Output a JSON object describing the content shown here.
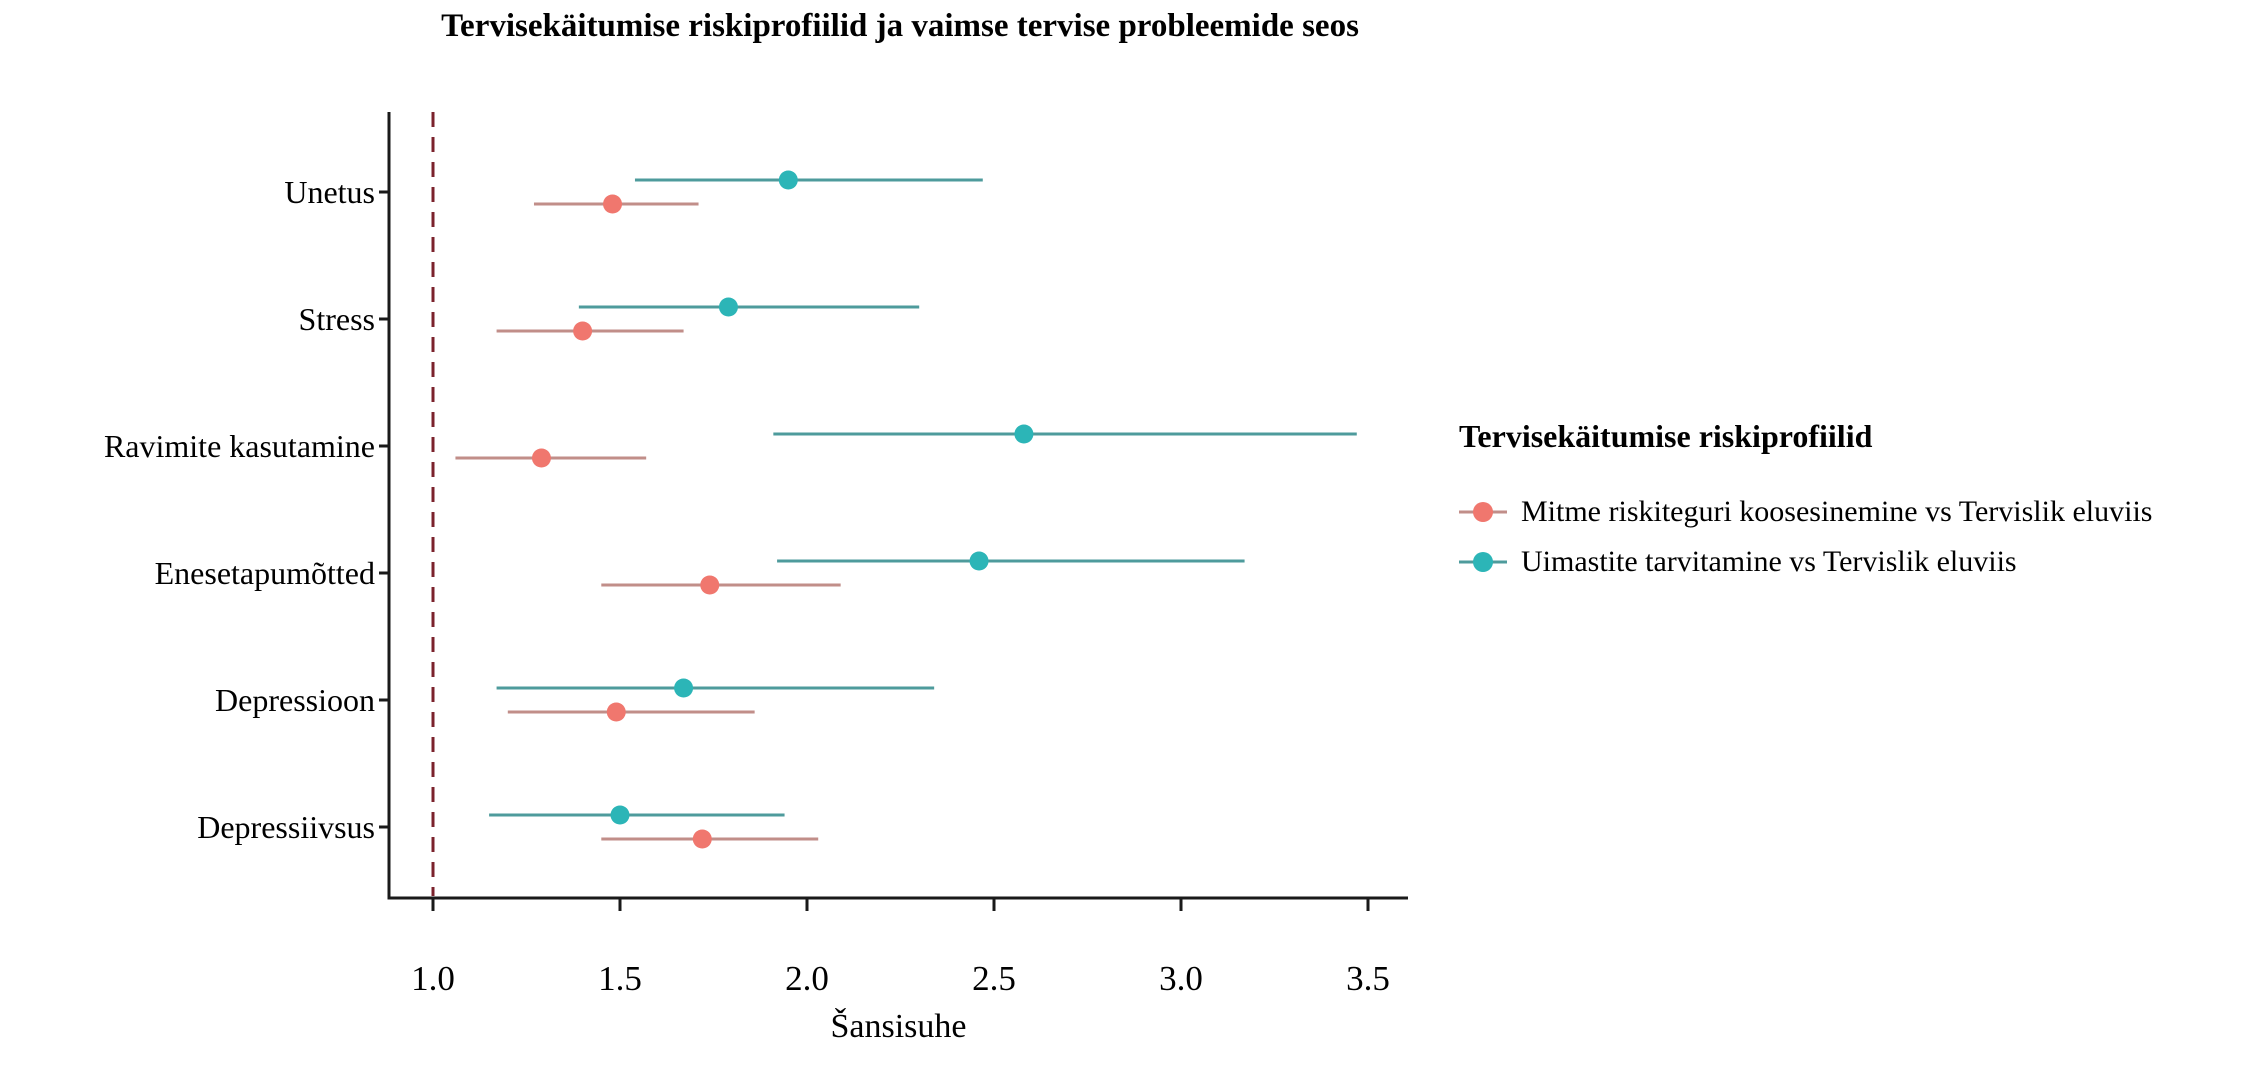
{
  "title": "Tervisekäitumise riskiprofiilid ja vaimse tervise probleemide seos",
  "legend": {
    "title": "Tervisekäitumise riskiprofiilid",
    "entries": [
      {
        "label": "Mitme riskiteguri koosesinemine vs Tervislik eluviis"
      },
      {
        "label": "Uimastite tarvitamine vs Tervislik eluviis"
      }
    ]
  },
  "chart_data": {
    "type": "scatter",
    "subtype": "forest-plot-point-with-95ci",
    "title": "Tervisekäitumise riskiprofiilid ja vaimse tervise probleemide seos",
    "xlabel": "Šansisuhe",
    "ylabel": "",
    "xlim": [
      0.88,
      3.6
    ],
    "x_ticks": [
      1.0,
      1.5,
      2.0,
      2.5,
      3.0,
      3.5
    ],
    "x_tick_labels": [
      "1.0",
      "1.5",
      "2.0",
      "2.5",
      "3.0",
      "3.5"
    ],
    "grid": false,
    "legend_position": "right",
    "reference_line": {
      "x": 1.0,
      "color": "#7B222C",
      "style": "dashed"
    },
    "axis_color": "#1a1a1a",
    "categories": [
      "Unetus",
      "Stress",
      "Ravimite kasutamine",
      "Enesetapumõtted",
      "Depressioon",
      "Depressiivsus"
    ],
    "series": [
      {
        "name": "Mitme riskiteguri koosesinemine vs Tervislik eluviis",
        "color": "#F0776E",
        "line_color": "#C18E89",
        "points": [
          {
            "category": "Unetus",
            "or": 1.48,
            "ci_low": 1.27,
            "ci_high": 1.71
          },
          {
            "category": "Stress",
            "or": 1.4,
            "ci_low": 1.17,
            "ci_high": 1.67
          },
          {
            "category": "Ravimite kasutamine",
            "or": 1.29,
            "ci_low": 1.06,
            "ci_high": 1.57
          },
          {
            "category": "Enesetapumõtted",
            "or": 1.74,
            "ci_low": 1.45,
            "ci_high": 2.09
          },
          {
            "category": "Depressioon",
            "or": 1.49,
            "ci_low": 1.2,
            "ci_high": 1.86
          },
          {
            "category": "Depressiivsus",
            "or": 1.72,
            "ci_low": 1.45,
            "ci_high": 2.03
          }
        ]
      },
      {
        "name": "Uimastite tarvitamine vs Tervislik eluviis",
        "color": "#2CB5B7",
        "line_color": "#4E9B9C",
        "points": [
          {
            "category": "Unetus",
            "or": 1.95,
            "ci_low": 1.54,
            "ci_high": 2.47
          },
          {
            "category": "Stress",
            "or": 1.79,
            "ci_low": 1.39,
            "ci_high": 2.3
          },
          {
            "category": "Ravimite kasutamine",
            "or": 2.58,
            "ci_low": 1.91,
            "ci_high": 3.47
          },
          {
            "category": "Enesetapumõtted",
            "or": 2.46,
            "ci_low": 1.92,
            "ci_high": 3.17
          },
          {
            "category": "Depressioon",
            "or": 1.67,
            "ci_low": 1.17,
            "ci_high": 2.34
          },
          {
            "category": "Depressiivsus",
            "or": 1.5,
            "ci_low": 1.15,
            "ci_high": 1.94
          }
        ]
      }
    ]
  }
}
